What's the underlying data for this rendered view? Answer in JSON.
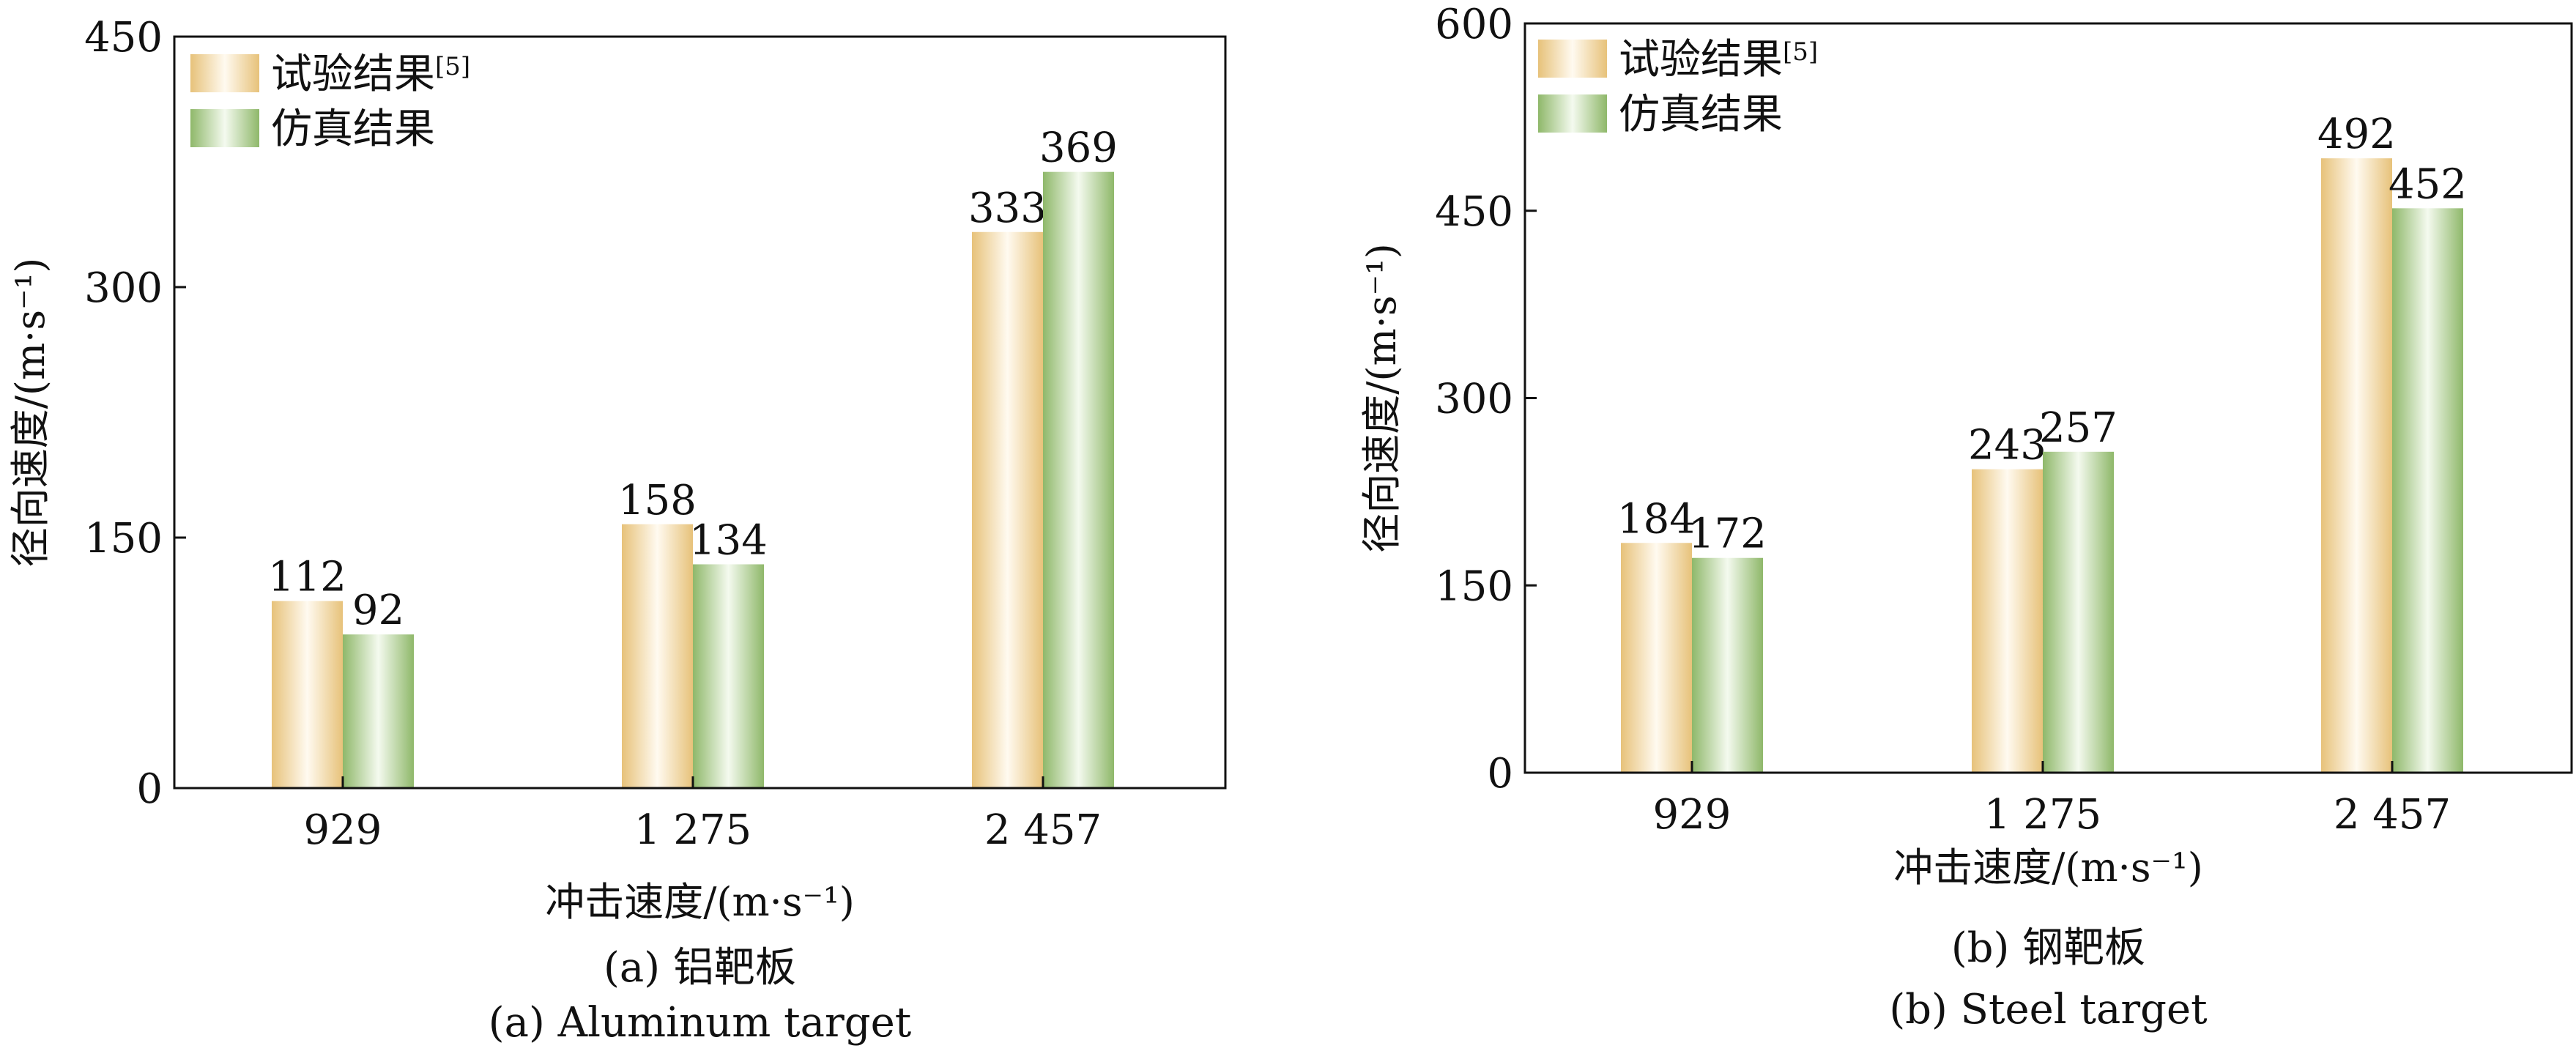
{
  "colors": {
    "series_experiment": "#e7c27a",
    "series_simulation": "#8fb86a",
    "axis": "#111111",
    "text": "#111111",
    "background": "#ffffff"
  },
  "chart_data": [
    {
      "type": "bar",
      "categories": [
        "929",
        "1 275",
        "2 457"
      ],
      "series": [
        {
          "name": "试验结果",
          "name_sup": "[5]",
          "values": [
            112,
            158,
            333
          ]
        },
        {
          "name": "仿真结果",
          "name_sup": "",
          "values": [
            92,
            134,
            369
          ]
        }
      ],
      "xlabel": "冲击速度/(m·s⁻¹)",
      "ylabel": "径向速度/(m·s⁻¹)",
      "ylim": [
        0,
        450
      ],
      "yticks": [
        0,
        150,
        300,
        450
      ],
      "grid": false,
      "legend": "top-left",
      "caption_cn": "(a) 铝靶板",
      "caption_en": "(a) Aluminum target"
    },
    {
      "type": "bar",
      "categories": [
        "929",
        "1 275",
        "2 457"
      ],
      "series": [
        {
          "name": "试验结果",
          "name_sup": "[5]",
          "values": [
            184,
            243,
            492
          ]
        },
        {
          "name": "仿真结果",
          "name_sup": "",
          "values": [
            172,
            257,
            452
          ]
        }
      ],
      "xlabel": "冲击速度/(m·s⁻¹)",
      "ylabel": "径向速度/(m·s⁻¹)",
      "ylim": [
        0,
        600
      ],
      "yticks": [
        0,
        150,
        300,
        450,
        600
      ],
      "grid": false,
      "legend": "top-left",
      "caption_cn": "(b) 钢靶板",
      "caption_en": "(b) Steel target"
    }
  ]
}
